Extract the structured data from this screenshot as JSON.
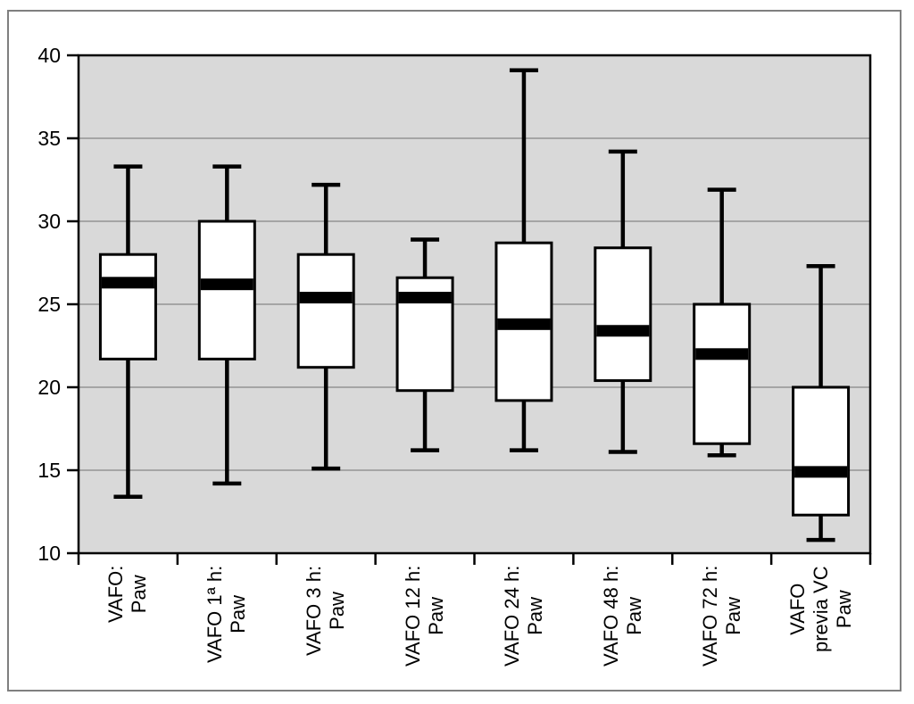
{
  "figure": {
    "background": "#ffffff",
    "frame_border_color": "#7f7f7f",
    "plot_background": "#d9d9d9",
    "gridline_color": "#949494",
    "axis_color": "#000000",
    "box_fill": "#ffffff",
    "box_stroke": "#000000",
    "median_color": "#000000",
    "whisker_color": "#000000",
    "tick_label_color": "#000000"
  },
  "chart_data": {
    "type": "box",
    "title": "",
    "xlabel": "",
    "ylabel": "",
    "ylim": [
      10,
      40
    ],
    "yticks": [
      10,
      15,
      20,
      25,
      30,
      35,
      40
    ],
    "grid": "horizontal gridlines at every y tick",
    "legend": "none",
    "categories": [
      "VAFO: Paw",
      "VAFO 1ª h: Paw",
      "VAFO 3 h: Paw",
      "VAFO 12 h: Paw",
      "VAFO 24 h: Paw",
      "VAFO 48 h: Paw",
      "VAFO 72 h: Paw",
      "VAFO previa VC Paw"
    ],
    "series": [
      {
        "category_lines": [
          "VAFO:",
          "Paw"
        ],
        "whisker_low": 13.4,
        "q1": 21.7,
        "median": 26.3,
        "q3": 28.0,
        "whisker_high": 33.3
      },
      {
        "category_lines": [
          "VAFO 1ª h:",
          "Paw"
        ],
        "whisker_low": 14.2,
        "q1": 21.7,
        "median": 26.2,
        "q3": 30.0,
        "whisker_high": 33.3
      },
      {
        "category_lines": [
          "VAFO 3 h:",
          "Paw"
        ],
        "whisker_low": 15.1,
        "q1": 21.2,
        "median": 25.4,
        "q3": 28.0,
        "whisker_high": 32.2
      },
      {
        "category_lines": [
          "VAFO 12 h:",
          "Paw"
        ],
        "whisker_low": 16.2,
        "q1": 19.8,
        "median": 25.4,
        "q3": 26.6,
        "whisker_high": 28.9
      },
      {
        "category_lines": [
          "VAFO 24 h:",
          "Paw"
        ],
        "whisker_low": 16.2,
        "q1": 19.2,
        "median": 23.8,
        "q3": 28.7,
        "whisker_high": 39.1
      },
      {
        "category_lines": [
          "VAFO 48 h:",
          "Paw"
        ],
        "whisker_low": 16.1,
        "q1": 20.4,
        "median": 23.4,
        "q3": 28.4,
        "whisker_high": 34.2
      },
      {
        "category_lines": [
          "VAFO 72 h:",
          "Paw"
        ],
        "whisker_low": 15.9,
        "q1": 16.6,
        "median": 22.0,
        "q3": 25.0,
        "whisker_high": 31.9
      },
      {
        "category_lines": [
          "VAFO",
          "previa VC",
          "Paw"
        ],
        "whisker_low": 10.8,
        "q1": 12.3,
        "median": 14.9,
        "q3": 20.0,
        "whisker_high": 27.3
      }
    ]
  }
}
